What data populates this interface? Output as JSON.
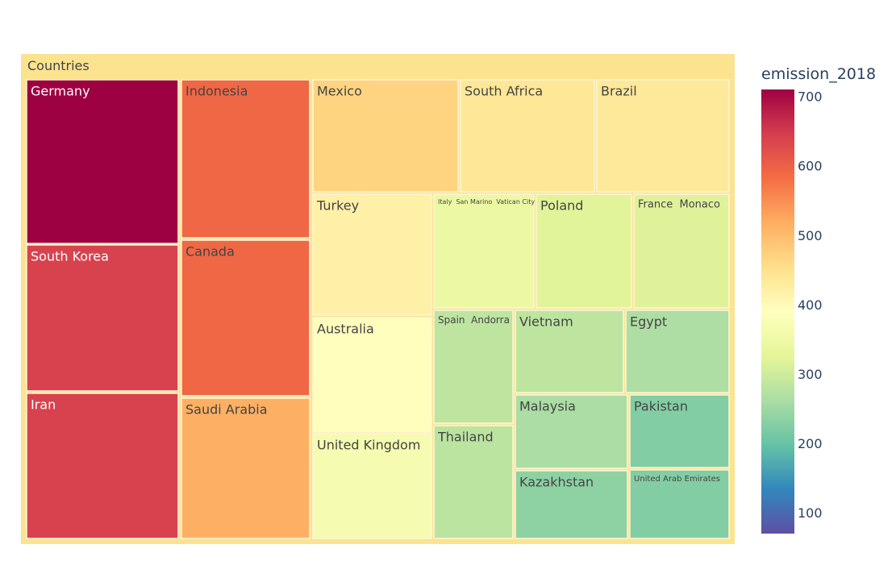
{
  "chart_data": {
    "type": "treemap",
    "root": "Countries",
    "colorbar": {
      "title": "emission_2018",
      "range": [
        70,
        710
      ],
      "ticks": [
        100,
        200,
        300,
        400,
        500,
        600,
        700
      ],
      "colorscale": "Spectral"
    },
    "tiles": [
      {
        "label": "Germany",
        "value": 710
      },
      {
        "label": "South Korea",
        "value": 640
      },
      {
        "label": "Iran",
        "value": 640
      },
      {
        "label": "Indonesia",
        "value": 590
      },
      {
        "label": "Canada",
        "value": 590
      },
      {
        "label": "Saudi Arabia",
        "value": 515
      },
      {
        "label": "Mexico",
        "value": 470
      },
      {
        "label": "South Africa",
        "value": 440
      },
      {
        "label": "Brazil",
        "value": 435
      },
      {
        "label": "Turkey",
        "value": 420
      },
      {
        "label": "Australia",
        "value": 392
      },
      {
        "label": "United Kingdom",
        "value": 365
      },
      {
        "label": "Italy  San Marino  Vatican City",
        "value": 345
      },
      {
        "label": "Poland",
        "value": 322
      },
      {
        "label": "France  Monaco",
        "value": 318
      },
      {
        "label": "Spain  Andorra",
        "value": 282
      },
      {
        "label": "Thailand",
        "value": 280
      },
      {
        "label": "Vietnam",
        "value": 282
      },
      {
        "label": "Egypt",
        "value": 265
      },
      {
        "label": "Malaysia",
        "value": 262
      },
      {
        "label": "Pakistan",
        "value": 225
      },
      {
        "label": "Kazakhstan",
        "value": 235
      },
      {
        "label": "United Arab Emirates",
        "value": 225
      }
    ]
  }
}
